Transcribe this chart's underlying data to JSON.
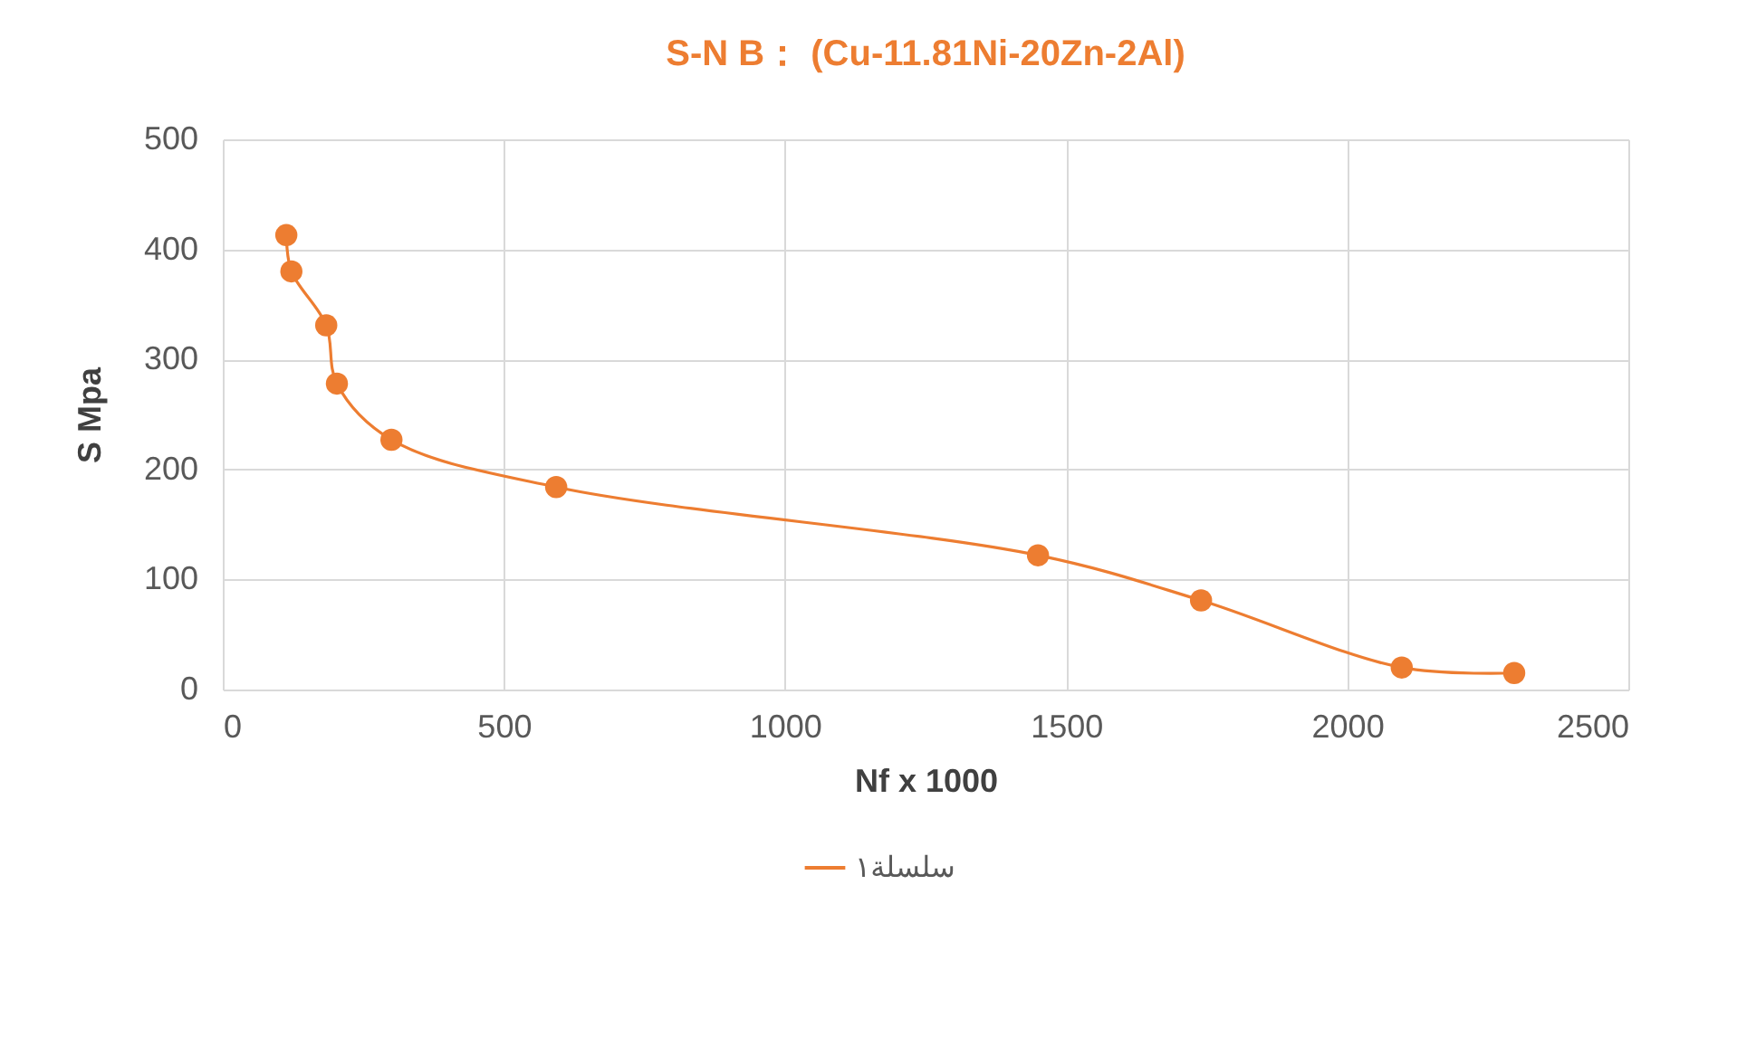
{
  "chart_data": {
    "type": "line",
    "title": "S-N    B： (Cu-11.81Ni-20Zn-2Al)",
    "xlabel": "Nf  x  1000",
    "ylabel": "S   Mpa",
    "x": [
      113,
      122,
      184,
      203,
      300,
      593,
      1450,
      1740,
      2097,
      2297
    ],
    "series": [
      {
        "name": "سلسلة١",
        "color": "#ed7d31",
        "values": [
          413,
          380,
          331,
          278,
          227,
          184,
          122,
          81,
          20,
          15
        ]
      }
    ],
    "xlim": [
      0,
      2500
    ],
    "xticks": [
      0,
      500,
      1000,
      1500,
      2000,
      2500
    ],
    "ylim": [
      0,
      500
    ],
    "yticks": [
      0,
      100,
      200,
      300,
      400,
      500
    ],
    "grid": true,
    "legend": "bottom",
    "marker": "circle",
    "line_style": "solid"
  }
}
